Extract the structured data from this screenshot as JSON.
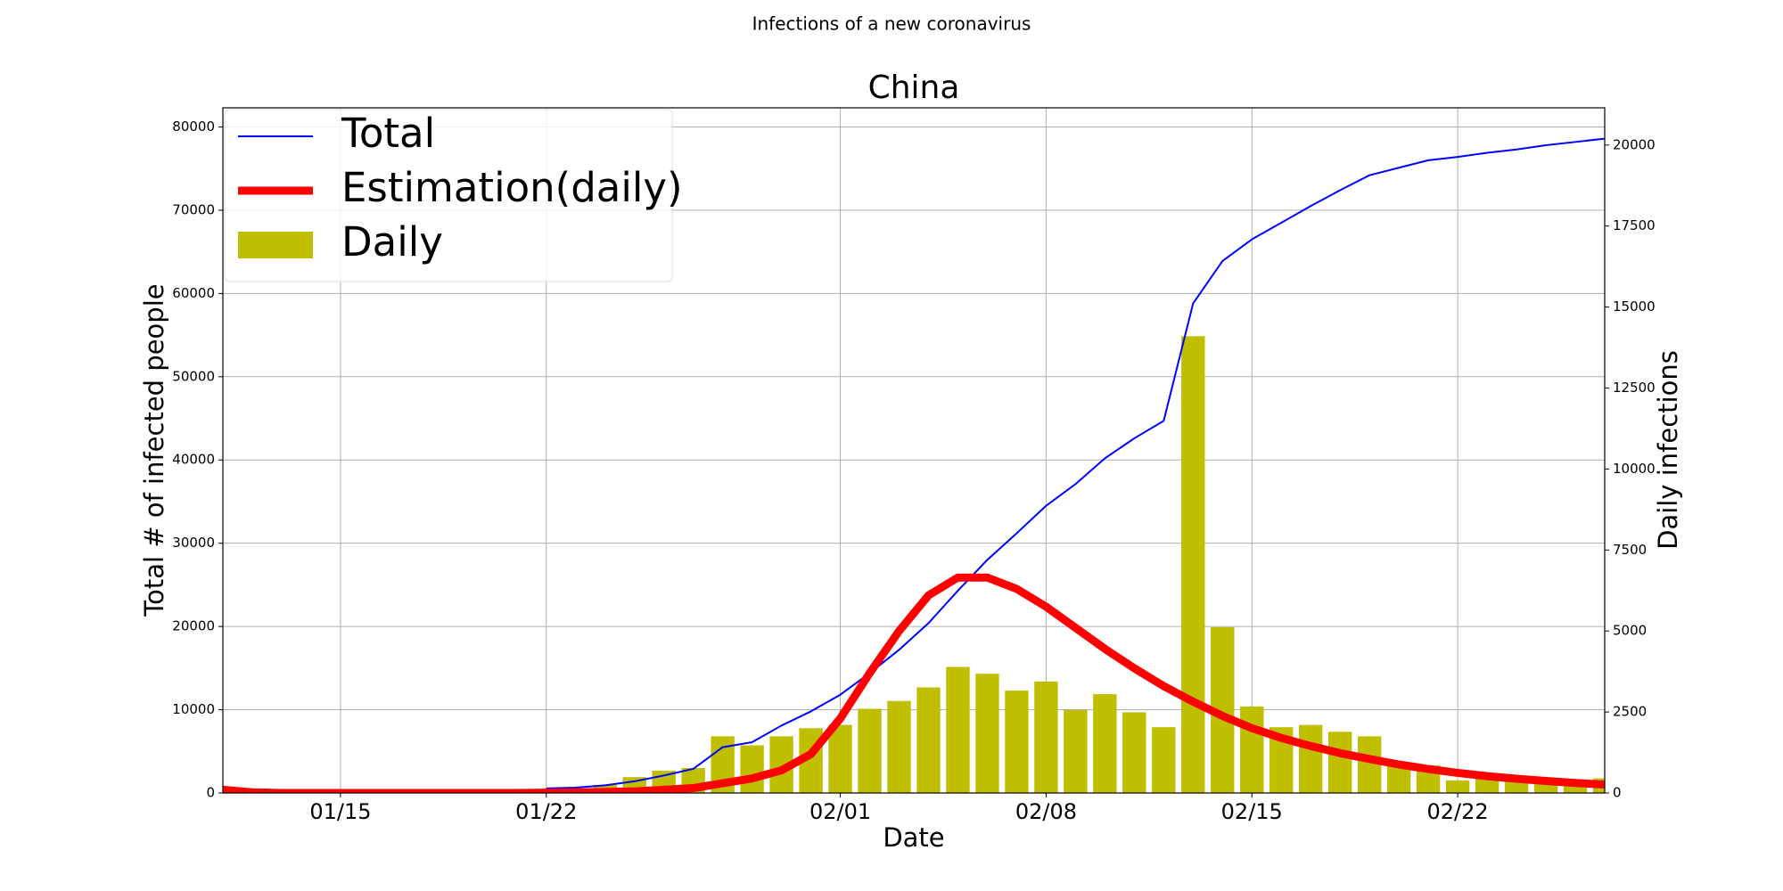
{
  "chart_data": {
    "type": "combo",
    "suptitle": "Infections of a new coronavirus",
    "title": "China",
    "xlabel": "Date",
    "ylabel": "Total # of infected people",
    "y2label": "Daily infections",
    "xlim": [
      "01/11",
      "02/27"
    ],
    "xticks": [
      "01/15",
      "01/22",
      "02/01",
      "02/08",
      "02/15",
      "02/22"
    ],
    "ylim": [
      0,
      82300
    ],
    "yticks": [
      0,
      10000,
      20000,
      30000,
      40000,
      50000,
      60000,
      70000,
      80000
    ],
    "y2lim": [
      0,
      21150
    ],
    "y2ticks": [
      0,
      2500,
      5000,
      7500,
      10000,
      12500,
      15000,
      17500,
      20000
    ],
    "grid": true,
    "legend": "upper left",
    "series": [
      {
        "name": "Total",
        "type": "line",
        "color": "#0000ff",
        "x": [
          "01/22",
          "01/23",
          "01/24",
          "01/25",
          "01/26",
          "01/27",
          "01/28",
          "01/29",
          "01/30",
          "01/31",
          "02/01",
          "02/02",
          "02/03",
          "02/04",
          "02/05",
          "02/06",
          "02/07",
          "02/08",
          "02/09",
          "02/10",
          "02/11",
          "02/12",
          "02/13",
          "02/14",
          "02/15",
          "02/16",
          "02/17",
          "02/18",
          "02/19",
          "02/20",
          "02/21",
          "02/22",
          "02/23",
          "02/24",
          "02/25",
          "02/26",
          "02/27"
        ],
        "values": [
          550,
          640,
          920,
          1400,
          2100,
          2900,
          5500,
          6100,
          8100,
          9800,
          11800,
          14400,
          17200,
          20400,
          24300,
          28000,
          31200,
          34500,
          37100,
          40200,
          42600,
          44700,
          58800,
          63900,
          66500,
          68500,
          70500,
          72400,
          74200,
          75100,
          76000,
          76400,
          76900,
          77300,
          77800,
          78200,
          78600
        ]
      },
      {
        "name": "Estimation(daily)",
        "type": "line",
        "axis": "y2",
        "color": "#ff0000",
        "x": [
          "01/11",
          "01/12",
          "01/13",
          "01/14",
          "01/15",
          "01/16",
          "01/17",
          "01/18",
          "01/19",
          "01/20",
          "01/21",
          "01/22",
          "01/23",
          "01/24",
          "01/25",
          "01/26",
          "01/27",
          "01/28",
          "01/29",
          "01/30",
          "01/31",
          "02/01",
          "02/02",
          "02/03",
          "02/04",
          "02/05",
          "02/06",
          "02/07",
          "02/08",
          "02/09",
          "02/10",
          "02/11",
          "02/12",
          "02/13",
          "02/14",
          "02/15",
          "02/16",
          "02/17",
          "02/18",
          "02/19",
          "02/20",
          "02/21",
          "02/22",
          "02/23",
          "02/24",
          "02/25",
          "02/26",
          "02/27"
        ],
        "values": [
          100,
          20,
          0,
          0,
          0,
          0,
          0,
          0,
          0,
          0,
          0,
          10,
          20,
          30,
          50,
          100,
          150,
          300,
          450,
          700,
          1200,
          2300,
          3700,
          5000,
          6100,
          6650,
          6650,
          6300,
          5750,
          5100,
          4450,
          3850,
          3300,
          2820,
          2380,
          2000,
          1700,
          1450,
          1230,
          1050,
          880,
          740,
          620,
          520,
          440,
          370,
          310,
          260
        ]
      },
      {
        "name": "Daily",
        "type": "bar",
        "axis": "y2",
        "color": "#bfbf00",
        "x": [
          "01/22",
          "01/23",
          "01/24",
          "01/25",
          "01/26",
          "01/27",
          "01/28",
          "01/29",
          "01/30",
          "01/31",
          "02/01",
          "02/02",
          "02/03",
          "02/04",
          "02/05",
          "02/06",
          "02/07",
          "02/08",
          "02/09",
          "02/10",
          "02/11",
          "02/12",
          "02/13",
          "02/14",
          "02/15",
          "02/16",
          "02/17",
          "02/18",
          "02/19",
          "02/20",
          "02/21",
          "02/22",
          "02/23",
          "02/24",
          "02/25",
          "02/26",
          "02/27"
        ],
        "values": [
          100,
          100,
          250,
          490,
          690,
          770,
          1750,
          1470,
          1750,
          2000,
          2100,
          2600,
          2840,
          3260,
          3890,
          3680,
          3160,
          3440,
          2560,
          3050,
          2490,
          2030,
          14100,
          5120,
          2670,
          2030,
          2100,
          1890,
          1750,
          900,
          850,
          390,
          600,
          500,
          450,
          400,
          450
        ]
      }
    ]
  }
}
